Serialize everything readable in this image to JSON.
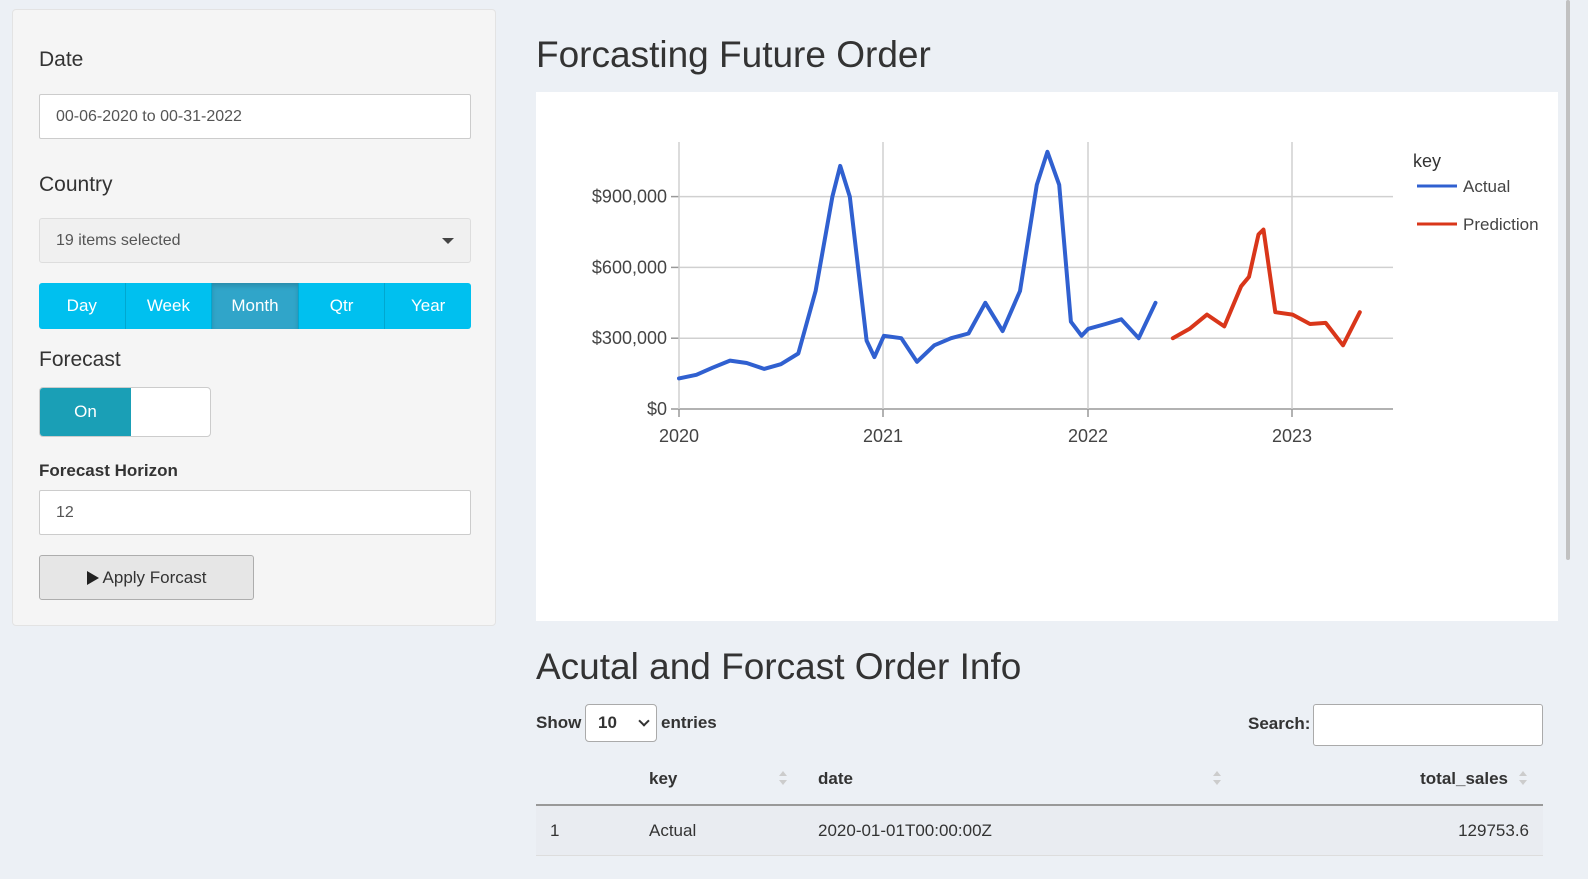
{
  "sidebar": {
    "date_label": "Date",
    "date_value": "00-06-2020 to 00-31-2022",
    "country_label": "Country",
    "country_value": "19 items selected",
    "period_buttons": [
      "Day",
      "Week",
      "Month",
      "Qtr",
      "Year"
    ],
    "period_selected": "Month",
    "forecast_label": "Forecast",
    "forecast_toggle": "On",
    "horizon_label": "Forecast Horizon",
    "horizon_value": "12",
    "apply_label": "Apply Forcast"
  },
  "chart_title": "Forcasting Future Order",
  "chart_data": {
    "type": "line",
    "title": "",
    "xlabel": "",
    "ylabel": "",
    "x_ticks": [
      "2020",
      "2021",
      "2022",
      "2023"
    ],
    "y_ticks": [
      "$0",
      "$300,000",
      "$600,000",
      "$900,000"
    ],
    "ylim": [
      0,
      1150000
    ],
    "grid": true,
    "legend_title": "key",
    "legend_position": "top-right",
    "series": [
      {
        "name": "Actual",
        "color": "#3060d0",
        "points": [
          [
            "2020-01-01",
            129754
          ],
          [
            "2020-02-01",
            145000
          ],
          [
            "2020-03-01",
            175000
          ],
          [
            "2020-04-01",
            205000
          ],
          [
            "2020-05-01",
            195000
          ],
          [
            "2020-06-01",
            170000
          ],
          [
            "2020-07-01",
            190000
          ],
          [
            "2020-08-01",
            235000
          ],
          [
            "2020-09-01",
            500000
          ],
          [
            "2020-10-01",
            900000
          ],
          [
            "2020-10-15",
            1030000
          ],
          [
            "2020-11-01",
            900000
          ],
          [
            "2020-12-01",
            290000
          ],
          [
            "2020-12-15",
            220000
          ],
          [
            "2021-01-01",
            310000
          ],
          [
            "2021-02-01",
            300000
          ],
          [
            "2021-03-01",
            200000
          ],
          [
            "2021-04-01",
            270000
          ],
          [
            "2021-05-01",
            300000
          ],
          [
            "2021-06-01",
            320000
          ],
          [
            "2021-07-01",
            450000
          ],
          [
            "2021-08-01",
            330000
          ],
          [
            "2021-09-01",
            500000
          ],
          [
            "2021-10-01",
            950000
          ],
          [
            "2021-10-20",
            1090000
          ],
          [
            "2021-11-10",
            950000
          ],
          [
            "2021-12-01",
            370000
          ],
          [
            "2021-12-20",
            310000
          ],
          [
            "2022-01-01",
            340000
          ],
          [
            "2022-02-01",
            360000
          ],
          [
            "2022-03-01",
            380000
          ],
          [
            "2022-04-01",
            300000
          ],
          [
            "2022-05-01",
            450000
          ]
        ]
      },
      {
        "name": "Prediction",
        "color": "#d9361a",
        "points": [
          [
            "2022-06-01",
            300000
          ],
          [
            "2022-07-01",
            340000
          ],
          [
            "2022-08-01",
            400000
          ],
          [
            "2022-09-01",
            350000
          ],
          [
            "2022-10-01",
            520000
          ],
          [
            "2022-10-15",
            560000
          ],
          [
            "2022-11-01",
            740000
          ],
          [
            "2022-11-10",
            760000
          ],
          [
            "2022-12-01",
            410000
          ],
          [
            "2023-01-01",
            400000
          ],
          [
            "2023-02-01",
            360000
          ],
          [
            "2023-03-01",
            365000
          ],
          [
            "2023-04-01",
            270000
          ],
          [
            "2023-05-01",
            410000
          ]
        ]
      }
    ]
  },
  "table_title": "Acutal and Forcast Order Info",
  "table": {
    "show_label": "Show",
    "entries_value": "10",
    "entries_label": "entries",
    "search_label": "Search:",
    "columns": [
      "",
      "key",
      "date",
      "total_sales"
    ],
    "rows": [
      [
        "1",
        "Actual",
        "2020-01-01T00:00:00Z",
        "129753.6"
      ]
    ]
  }
}
